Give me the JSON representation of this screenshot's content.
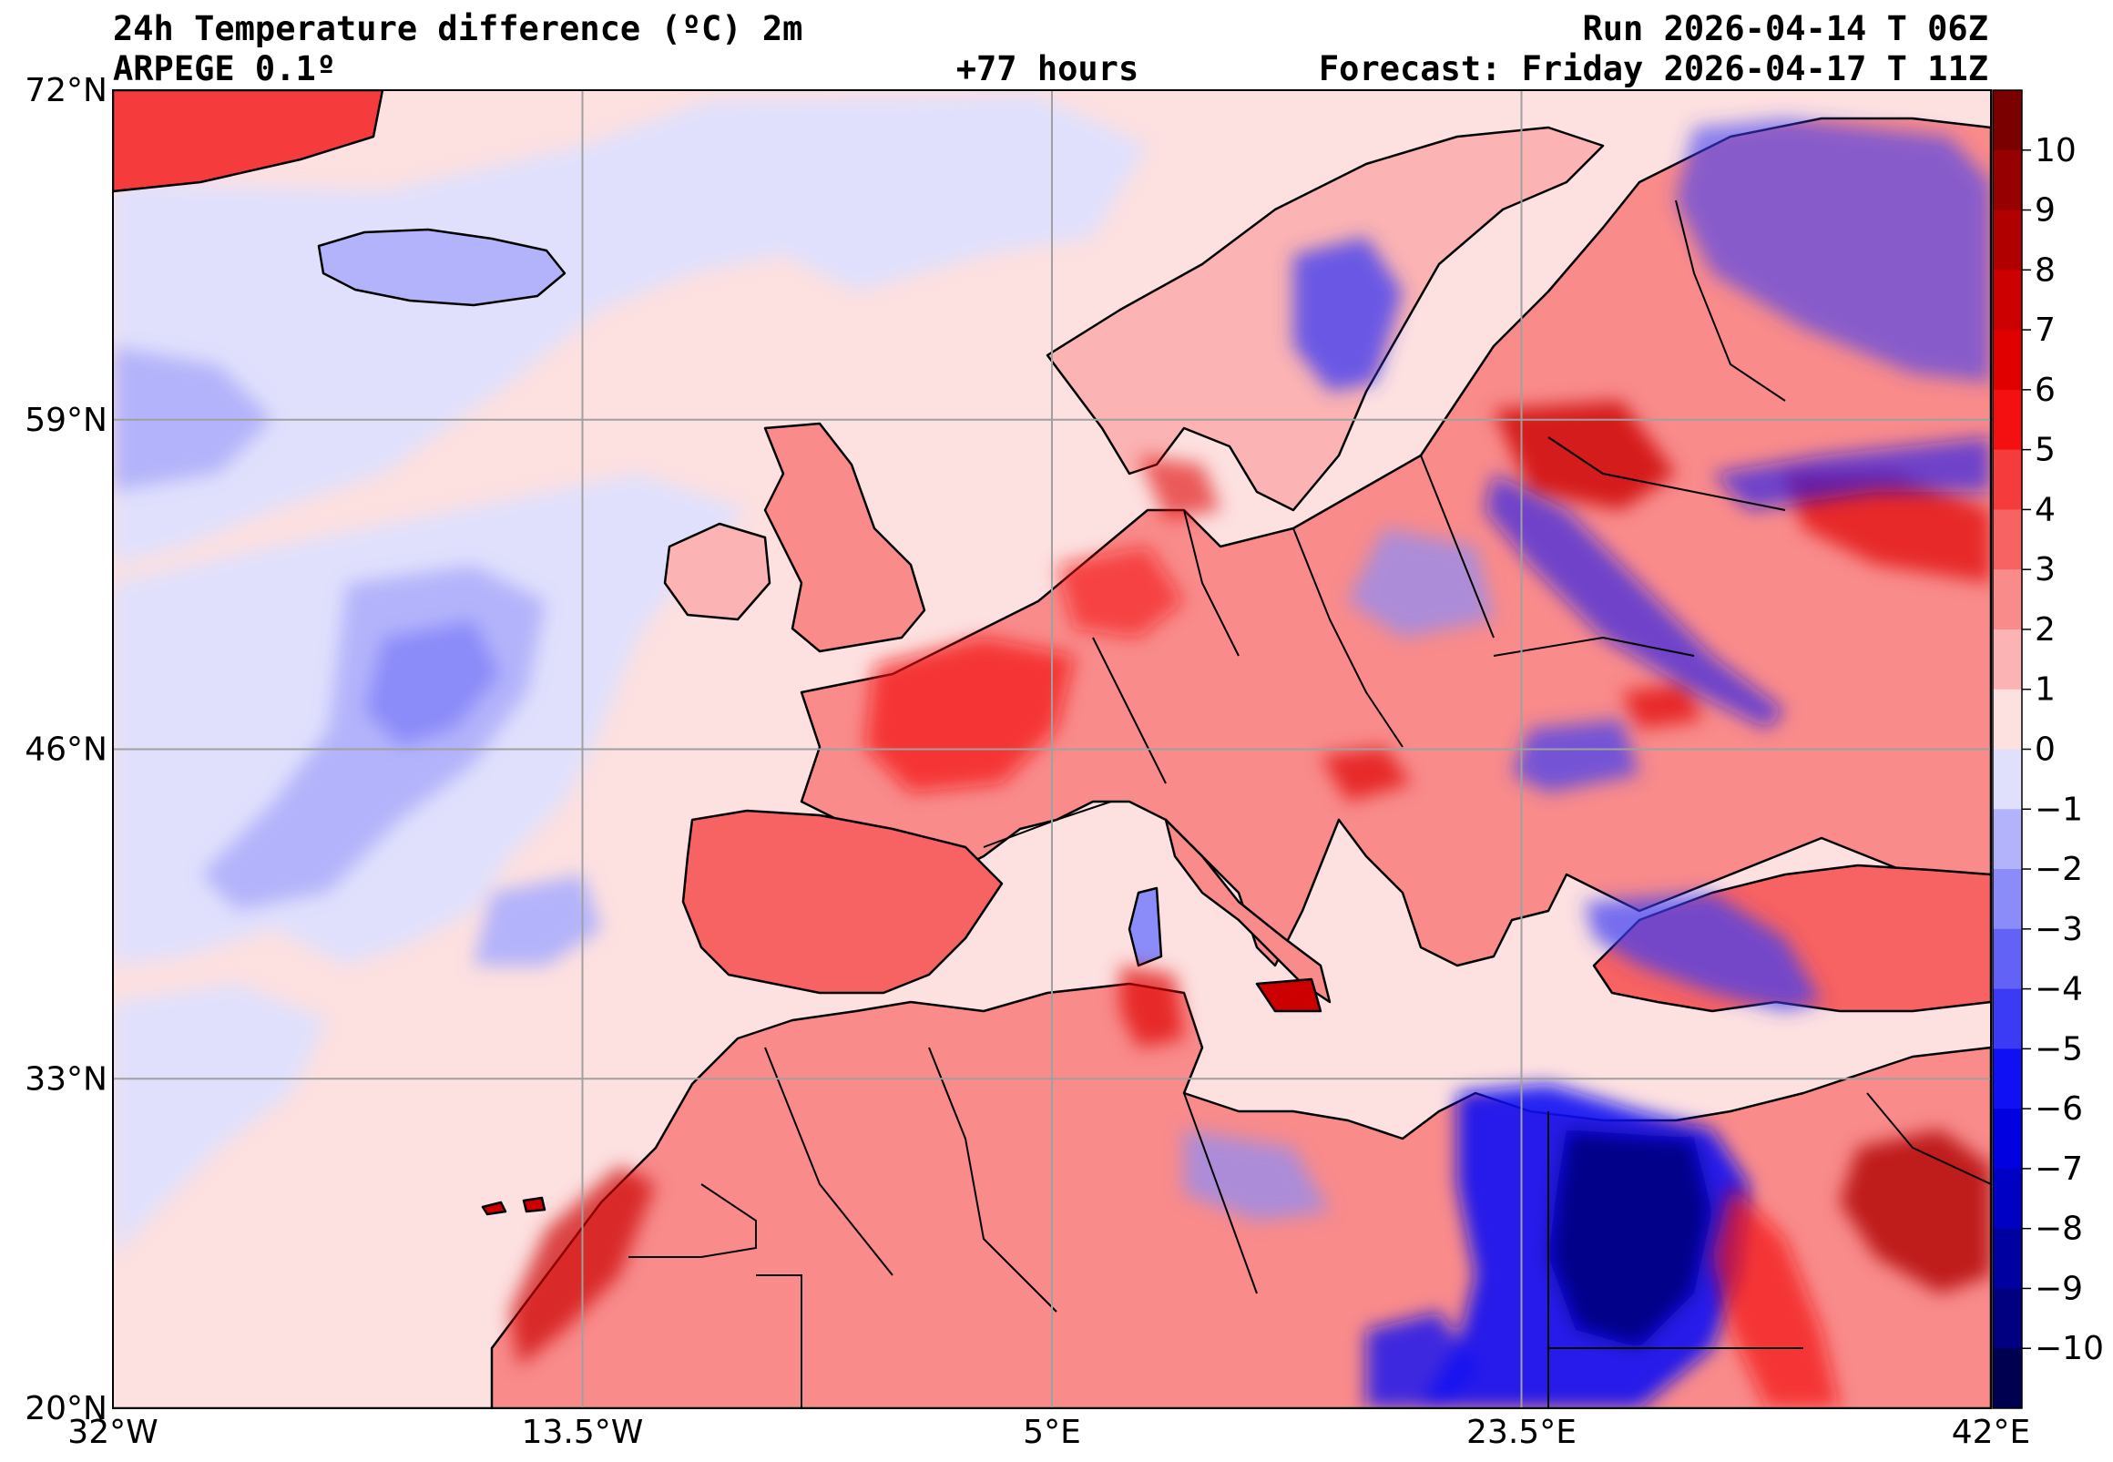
{
  "title": {
    "main": "24h Temperature difference (ºC) 2m",
    "model": "ARPEGE 0.1º",
    "lead": "+77 hours",
    "run": "Run 2026-04-14 T 06Z",
    "forecast": "Forecast: Friday 2026-04-17 T 11Z"
  },
  "map": {
    "lon_range": [
      -32,
      42
    ],
    "lat_range": [
      20,
      72
    ],
    "lon_ticks": [
      {
        "value": -32,
        "label": "32°W"
      },
      {
        "value": -13.5,
        "label": "13.5°W"
      },
      {
        "value": 5,
        "label": "5°E"
      },
      {
        "value": 23.5,
        "label": "23.5°E"
      },
      {
        "value": 42,
        "label": "42°E"
      }
    ],
    "lat_ticks": [
      {
        "value": 72,
        "label": "72°N"
      },
      {
        "value": 59,
        "label": "59°N"
      },
      {
        "value": 46,
        "label": "46°N"
      },
      {
        "value": 33,
        "label": "33°N"
      },
      {
        "value": 20,
        "label": "20°N"
      }
    ],
    "grid": true,
    "ocean_color": "#fde0e0"
  },
  "colorbar": {
    "min": -11,
    "max": 11,
    "labels": [
      "10",
      "9",
      "8",
      "7",
      "6",
      "5",
      "4",
      "3",
      "2",
      "1",
      "0",
      "−1",
      "−2",
      "−3",
      "−4",
      "−5",
      "−6",
      "−7",
      "−8",
      "−9",
      "−10"
    ],
    "label_values": [
      10,
      9,
      8,
      7,
      6,
      5,
      4,
      3,
      2,
      1,
      0,
      -1,
      -2,
      -3,
      -4,
      -5,
      -6,
      -7,
      -8,
      -9,
      -10
    ],
    "colors": [
      "#7a0000",
      "#960000",
      "#b00000",
      "#cc0000",
      "#e00000",
      "#f41010",
      "#f53b3b",
      "#f76262",
      "#f98b8b",
      "#fbb3b3",
      "#fde0e0",
      "#e0e0fd",
      "#b3b3fb",
      "#8b8bf9",
      "#6262f7",
      "#3b3bf5",
      "#1010f4",
      "#0000e0",
      "#0000c4",
      "#0000a0",
      "#000080",
      "#000050"
    ]
  }
}
